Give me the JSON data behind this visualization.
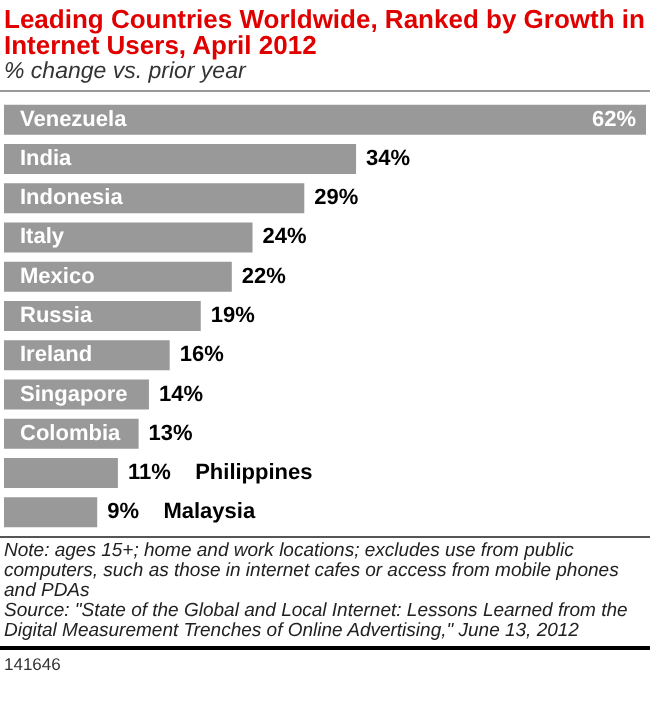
{
  "chart_data": {
    "type": "bar",
    "orientation": "horizontal",
    "title": "Leading Countries Worldwide, Ranked by Growth in Internet Users, April 2012",
    "subtitle": "% change vs. prior year",
    "categories": [
      "Venezuela",
      "India",
      "Indonesia",
      "Italy",
      "Mexico",
      "Russia",
      "Ireland",
      "Singapore",
      "Colombia",
      "Philippines",
      "Malaysia"
    ],
    "values": [
      62,
      34,
      29,
      24,
      22,
      19,
      16,
      14,
      13,
      11,
      9
    ],
    "value_labels": [
      "62%",
      "34%",
      "29%",
      "24%",
      "22%",
      "19%",
      "16%",
      "14%",
      "13%",
      "11%",
      "9%"
    ],
    "color": "#999999",
    "annotations": [
      "Note: ages 15+; home and work locations; excludes use from public computers, such as those in internet cafes or access from mobile phones and PDAs",
      "Source: \"State of the Global and Local Internet: Lessons Learned from the Digital Measurement Trenches of Online Advertising,\" June 13, 2012",
      "141646"
    ]
  }
}
